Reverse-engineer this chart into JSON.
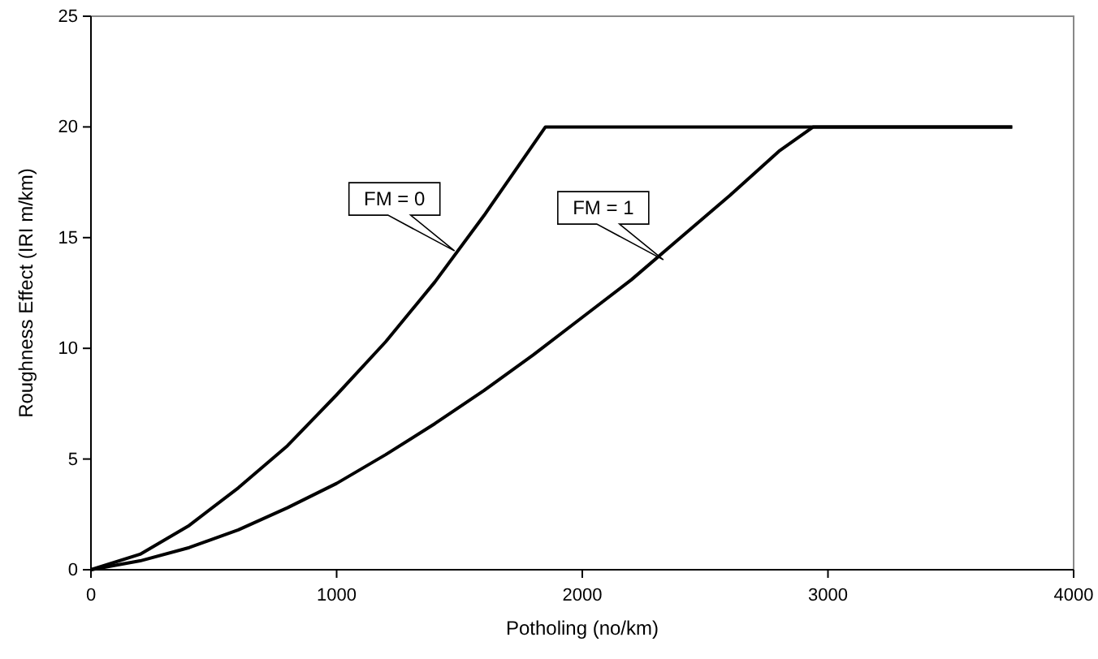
{
  "chart_data": {
    "type": "line",
    "xlabel": "Potholing (no/km)",
    "ylabel": "Roughness Effect (IRI m/km)",
    "xlim": [
      0,
      4000
    ],
    "xticks": [
      0,
      1000,
      2000,
      3000,
      4000
    ],
    "ylim": [
      0,
      25
    ],
    "yticks": [
      0,
      5,
      10,
      15,
      20,
      25
    ],
    "grid": false,
    "marker": "none",
    "line_style": "solid",
    "series": [
      {
        "color": "#000000",
        "x": [
          0,
          200,
          400,
          600,
          800,
          1000,
          1200,
          1400,
          1600,
          1850,
          3750
        ],
        "values": [
          0,
          0.7,
          2,
          3.7,
          5.6,
          7.9,
          10.3,
          13,
          16,
          20,
          20
        ]
      },
      {
        "color": "#000000",
        "x": [
          0,
          200,
          400,
          600,
          800,
          1000,
          1200,
          1400,
          1600,
          1800,
          2000,
          2200,
          2400,
          2600,
          2800,
          2940,
          3750
        ],
        "values": [
          0,
          0.4,
          1,
          1.8,
          2.8,
          3.9,
          5.2,
          6.6,
          8.1,
          9.7,
          11.4,
          13.1,
          15,
          16.9,
          18.9,
          20,
          20
        ]
      }
    ],
    "annotations": [
      {
        "text": "FM = 0",
        "x": 1480,
        "y": 14.4
      },
      {
        "text": "FM = 1",
        "x": 2330,
        "y": 14
      }
    ]
  }
}
